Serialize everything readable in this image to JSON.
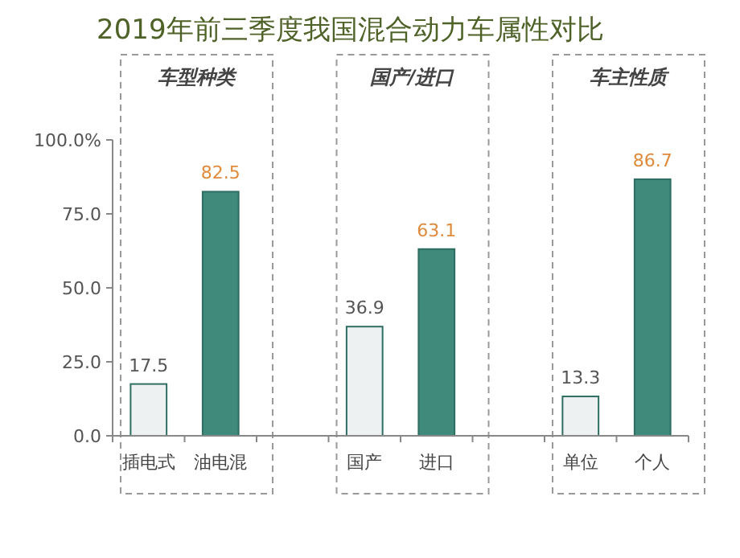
{
  "chart_data": {
    "type": "bar",
    "title": "2019年前三季度我国混合动力车属性对比",
    "categories": [
      "插电式",
      "油电混",
      "国产",
      "进口",
      "单位",
      "个人"
    ],
    "values": [
      17.5,
      82.5,
      36.9,
      63.1,
      13.3,
      86.7
    ],
    "colors": [
      "#eef1f1",
      "#3f8a7b",
      "#eef1f1",
      "#3f8a7b",
      "#eef1f1",
      "#3f8a7b"
    ],
    "ylim": [
      0,
      100
    ],
    "yticks": [
      {
        "value": 0,
        "label": "0.0"
      },
      {
        "value": 25,
        "label": "25.0"
      },
      {
        "value": 50,
        "label": "50.0"
      },
      {
        "value": 75,
        "label": "75.0"
      },
      {
        "value": 100,
        "label": "100.0%"
      }
    ],
    "data_labels": true,
    "grid": false,
    "annotations": [
      "车型种类",
      "国产/进口",
      "车主性质"
    ]
  }
}
